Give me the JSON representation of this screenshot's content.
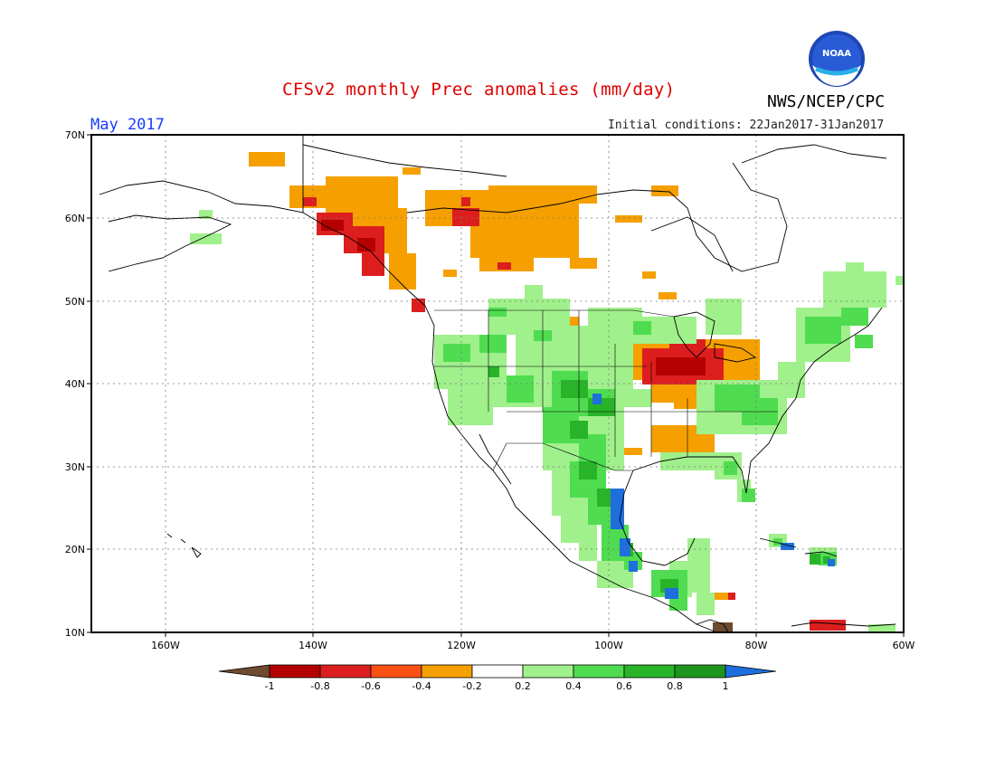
{
  "title": "CFSv2 monthly Prec anomalies (mm/day)",
  "agency": "NWS/NCEP/CPC",
  "logo_text": "NOAA",
  "month": "May 2017",
  "initial_conditions": "Initial conditions: 22Jan2017-31Jan2017",
  "map": {
    "lat_labels": [
      "70N",
      "60N",
      "50N",
      "40N",
      "30N",
      "20N",
      "10N"
    ],
    "lon_labels": [
      "160W",
      "140W",
      "120W",
      "100W",
      "80W",
      "60W"
    ],
    "extent": {
      "lon": [
        -170,
        -60
      ],
      "lat": [
        10,
        70
      ]
    }
  },
  "colorbar": {
    "labels": [
      "-1",
      "-0.8",
      "-0.6",
      "-0.4",
      "-0.2",
      "0.2",
      "0.4",
      "0.6",
      "0.8",
      "1"
    ],
    "colors": [
      "#6e4a2e",
      "#b40000",
      "#dc1e1e",
      "#fa5014",
      "#f5a000",
      "#ffffff",
      "#a0f08c",
      "#50dc50",
      "#28b428",
      "#1e961e",
      "#1e6edc"
    ]
  },
  "colors": {
    "title": "#e00000",
    "month": "#1a3cff",
    "dry_strong": "#dc1e1e",
    "dry_moderate": "#f5a000",
    "wet_light": "#a0f08c",
    "wet_moderate": "#50dc50",
    "wet_strong": "#28b428",
    "wet_extreme": "#1e6edc"
  }
}
